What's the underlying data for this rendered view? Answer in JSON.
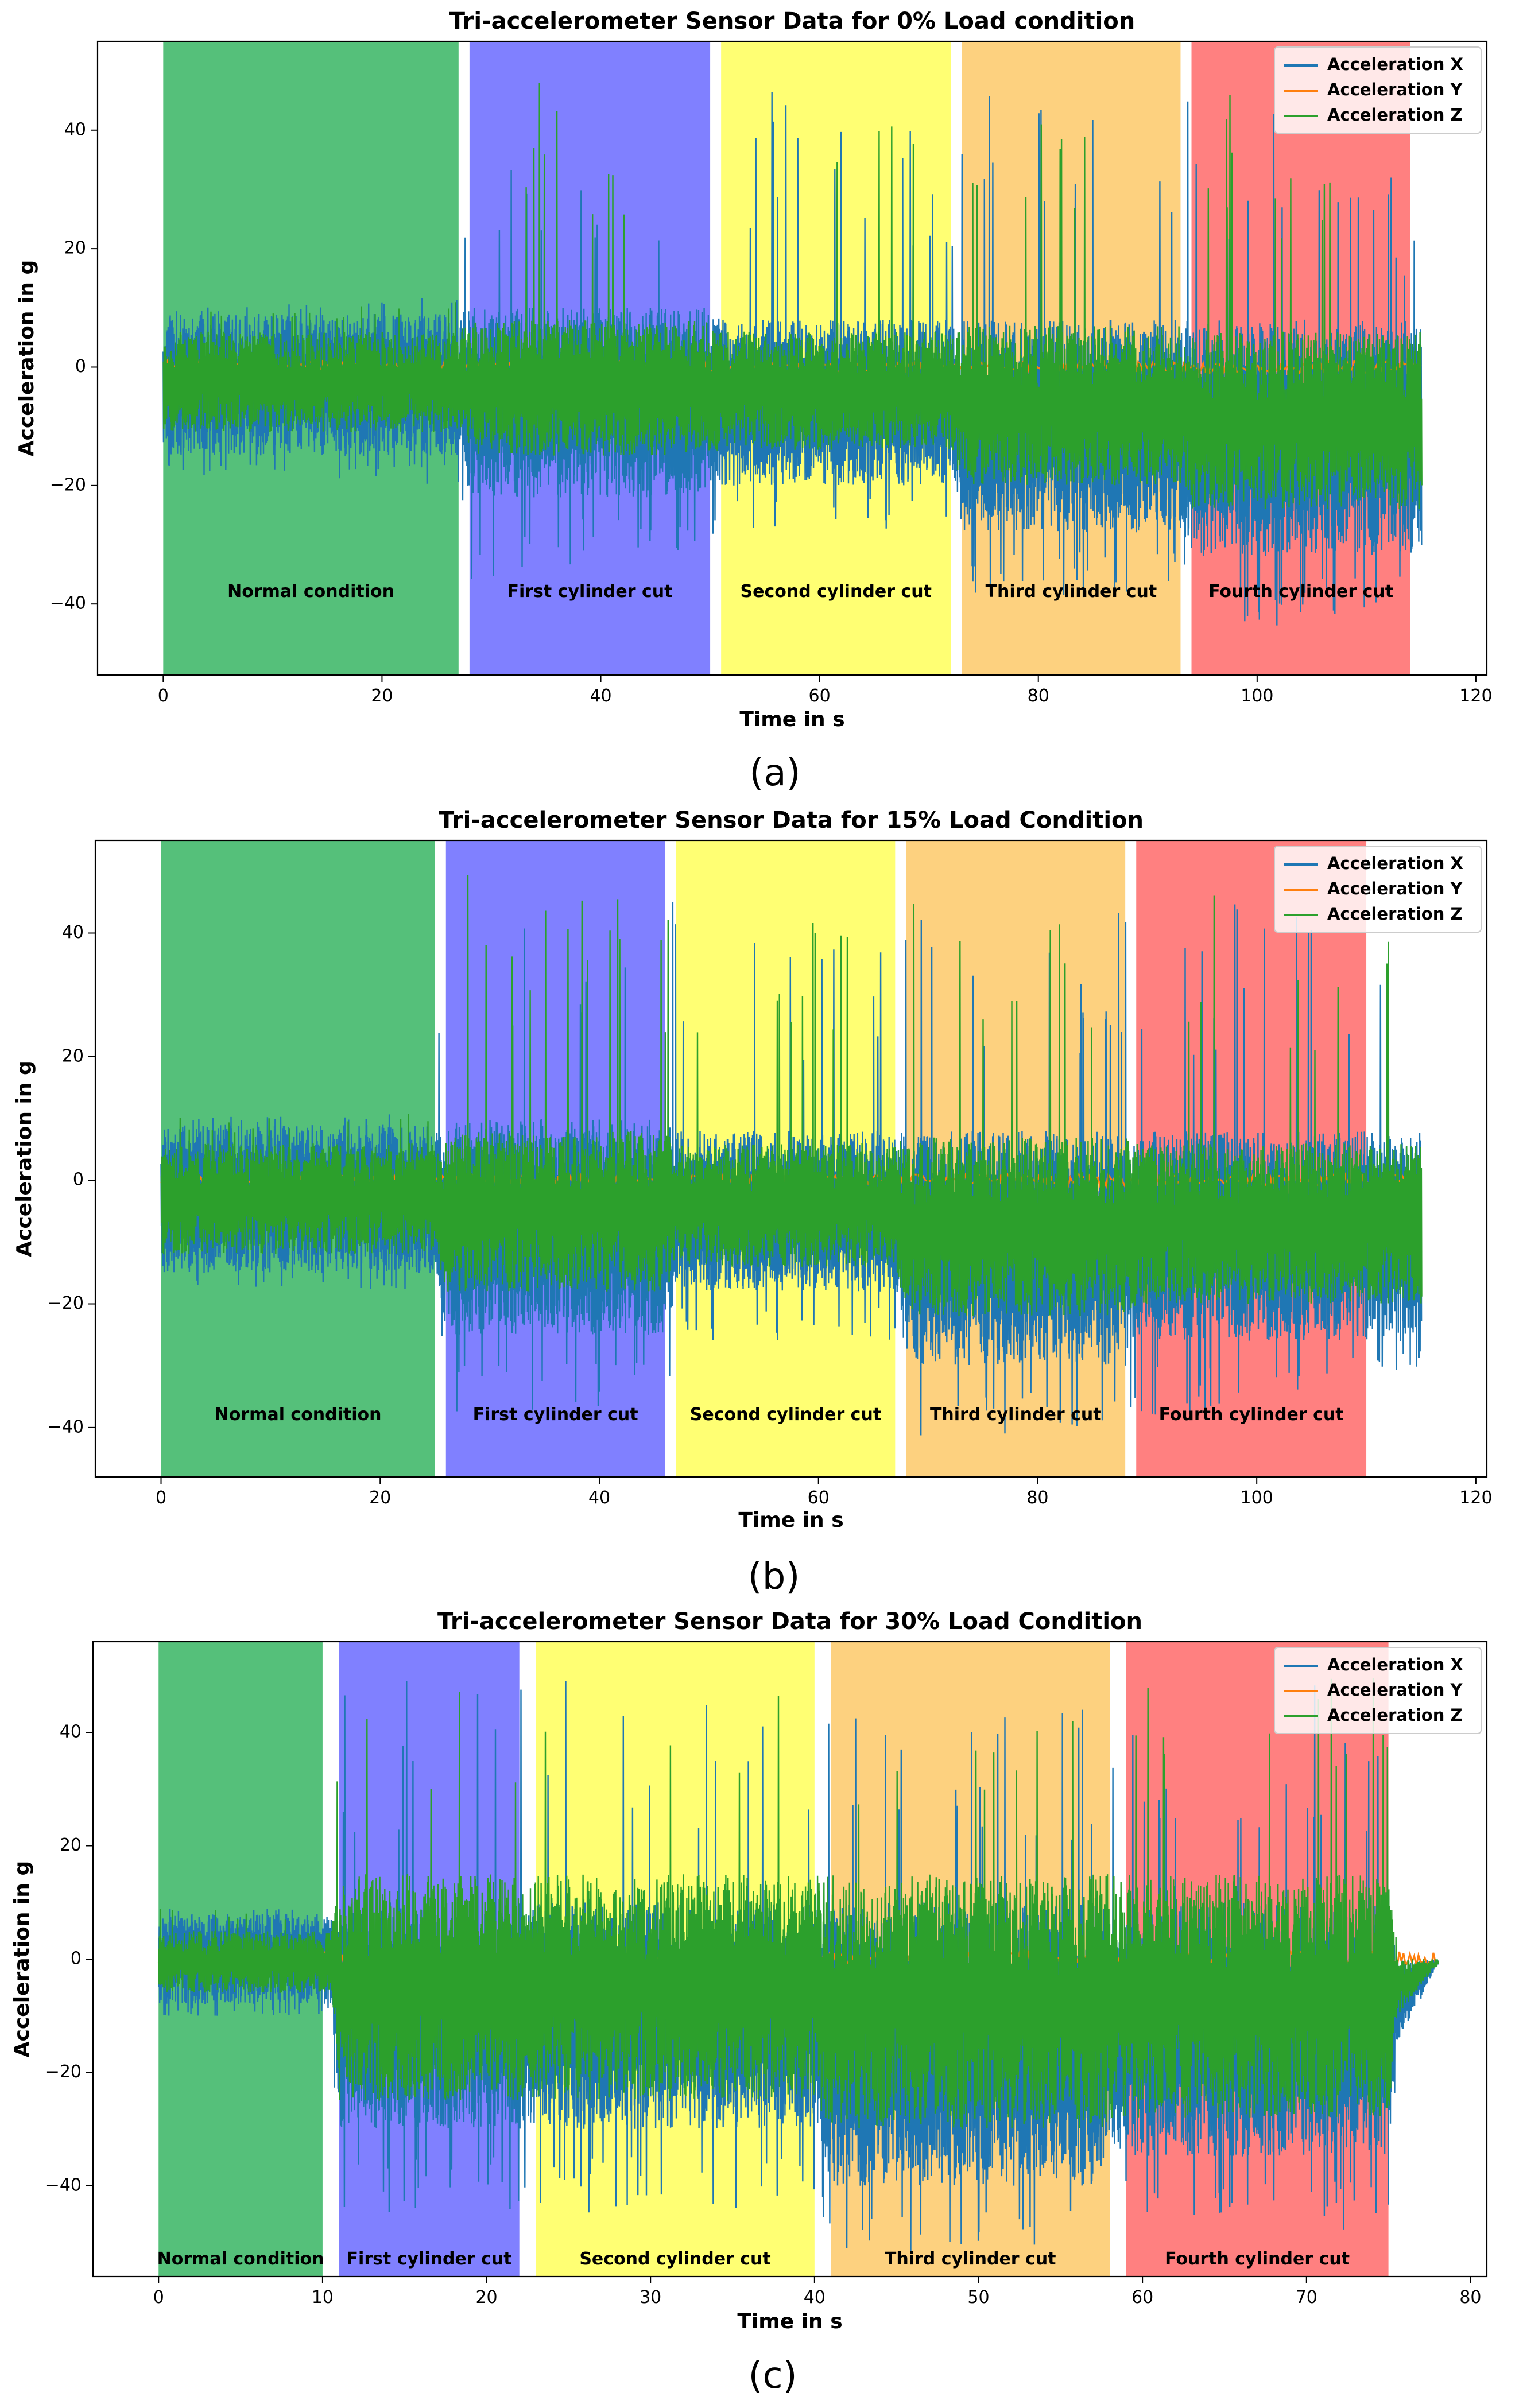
{
  "chart_data": [
    {
      "type": "line",
      "panel_label": "(a)",
      "title": "Tri-accelerometer Sensor Data for 0% Load condition",
      "xlabel": "Time in s",
      "ylabel": "Acceleration in g",
      "xlim": [
        -6,
        121
      ],
      "ylim": [
        -52,
        55
      ],
      "xticks": [
        0,
        20,
        40,
        60,
        80,
        100,
        120
      ],
      "yticks": [
        -40,
        -20,
        0,
        20,
        40
      ],
      "grid": false,
      "legend_position": "top-right",
      "series": [
        {
          "name": "Acceleration X",
          "color": "#1f77b4"
        },
        {
          "name": "Acceleration Y",
          "color": "#ff7f0e"
        },
        {
          "name": "Acceleration Z",
          "color": "#2ca02c"
        }
      ],
      "regions": [
        {
          "label": "Normal condition",
          "start": 0,
          "end": 27,
          "color": "#55c07a"
        },
        {
          "label": "First cylinder cut",
          "start": 28,
          "end": 50,
          "color": "#8080ff"
        },
        {
          "label": "Second cylinder cut",
          "start": 51,
          "end": 72,
          "color": "#ffff73"
        },
        {
          "label": "Third cylinder cut",
          "start": 73,
          "end": 93,
          "color": "#fdd17f"
        },
        {
          "label": "Fourth cylinder cut",
          "start": 94,
          "end": 114,
          "color": "#ff8080"
        }
      ],
      "region_label_y": -38,
      "envelope": [
        {
          "t": 0,
          "x_max": 9,
          "x_min": -15,
          "z_max": 6,
          "z_min": -11,
          "peak_max": 10,
          "peak_min": -18
        },
        {
          "t": 27,
          "x_max": 9,
          "x_min": -15,
          "z_max": 6,
          "z_min": -11,
          "peak_max": 12,
          "peak_min": -20
        },
        {
          "t": 28,
          "x_max": 10,
          "x_min": -22,
          "z_max": 8,
          "z_min": -15,
          "peak_max": 52,
          "peak_min": -38
        },
        {
          "t": 50,
          "x_max": 10,
          "x_min": -22,
          "z_max": 8,
          "z_min": -15,
          "peak_max": 45,
          "peak_min": -30
        },
        {
          "t": 51,
          "x_max": 8,
          "x_min": -20,
          "z_max": 6,
          "z_min": -14,
          "peak_max": 48,
          "peak_min": -28
        },
        {
          "t": 72,
          "x_max": 8,
          "x_min": -20,
          "z_max": 6,
          "z_min": -14,
          "peak_max": 45,
          "peak_min": -27
        },
        {
          "t": 73,
          "x_max": 8,
          "x_min": -28,
          "z_max": 7,
          "z_min": -20,
          "peak_max": 48,
          "peak_min": -40
        },
        {
          "t": 93,
          "x_max": 8,
          "x_min": -28,
          "z_max": 7,
          "z_min": -20,
          "peak_max": 42,
          "peak_min": -38
        },
        {
          "t": 94,
          "x_max": 8,
          "x_min": -32,
          "z_max": 6,
          "z_min": -24,
          "peak_max": 52,
          "peak_min": -46
        },
        {
          "t": 115,
          "x_max": 8,
          "x_min": -32,
          "z_max": 6,
          "z_min": -24,
          "peak_max": 30,
          "peak_min": -40
        }
      ],
      "y_trace": {
        "value": 0,
        "amp": 1,
        "end": 115
      }
    },
    {
      "type": "line",
      "panel_label": "(b)",
      "title": "Tri-accelerometer Sensor Data for 15% Load Condition",
      "xlabel": "Time in s",
      "ylabel": "Acceleration in g",
      "xlim": [
        -6,
        121
      ],
      "ylim": [
        -48,
        55
      ],
      "xticks": [
        0,
        20,
        40,
        60,
        80,
        100,
        120
      ],
      "yticks": [
        -40,
        -20,
        0,
        20,
        40
      ],
      "grid": false,
      "legend_position": "top-right",
      "series": [
        {
          "name": "Acceleration X",
          "color": "#1f77b4"
        },
        {
          "name": "Acceleration Y",
          "color": "#ff7f0e"
        },
        {
          "name": "Acceleration Z",
          "color": "#2ca02c"
        }
      ],
      "regions": [
        {
          "label": "Normal condition",
          "start": 0,
          "end": 25,
          "color": "#55c07a"
        },
        {
          "label": "First cylinder cut",
          "start": 26,
          "end": 46,
          "color": "#8080ff"
        },
        {
          "label": "Second cylinder cut",
          "start": 47,
          "end": 67,
          "color": "#ffff73"
        },
        {
          "label": "Third cylinder cut",
          "start": 68,
          "end": 88,
          "color": "#fdd17f"
        },
        {
          "label": "Fourth cylinder cut",
          "start": 89,
          "end": 110,
          "color": "#ff8080"
        }
      ],
      "region_label_y": -38,
      "envelope": [
        {
          "t": 0,
          "x_max": 9,
          "x_min": -15,
          "z_max": 6,
          "z_min": -12,
          "peak_max": 10,
          "peak_min": -17
        },
        {
          "t": 25,
          "x_max": 9,
          "x_min": -15,
          "z_max": 6,
          "z_min": -12,
          "peak_max": 11,
          "peak_min": -18
        },
        {
          "t": 26,
          "x_max": 10,
          "x_min": -25,
          "z_max": 8,
          "z_min": -18,
          "peak_max": 50,
          "peak_min": -40
        },
        {
          "t": 46,
          "x_max": 10,
          "x_min": -25,
          "z_max": 8,
          "z_min": -18,
          "peak_max": 45,
          "peak_min": -36
        },
        {
          "t": 47,
          "x_max": 8,
          "x_min": -18,
          "z_max": 6,
          "z_min": -14,
          "peak_max": 48,
          "peak_min": -26
        },
        {
          "t": 67,
          "x_max": 8,
          "x_min": -18,
          "z_max": 6,
          "z_min": -14,
          "peak_max": 40,
          "peak_min": -26
        },
        {
          "t": 68,
          "x_max": 8,
          "x_min": -30,
          "z_max": 7,
          "z_min": -22,
          "peak_max": 46,
          "peak_min": -42
        },
        {
          "t": 88,
          "x_max": 8,
          "x_min": -30,
          "z_max": 7,
          "z_min": -22,
          "peak_max": 44,
          "peak_min": -40
        },
        {
          "t": 89,
          "x_max": 8,
          "x_min": -26,
          "z_max": 6,
          "z_min": -20,
          "peak_max": 50,
          "peak_min": -40
        },
        {
          "t": 115,
          "x_max": 8,
          "x_min": -26,
          "z_max": 6,
          "z_min": -20,
          "peak_max": 38,
          "peak_min": -30
        }
      ],
      "y_trace": {
        "value": 0,
        "amp": 1,
        "end": 115
      }
    },
    {
      "type": "line",
      "panel_label": "(c)",
      "title": "Tri-accelerometer Sensor Data for 30% Load Condition",
      "xlabel": "Time in s",
      "ylabel": "Acceleration in g",
      "xlim": [
        -4,
        81
      ],
      "ylim": [
        -56,
        56
      ],
      "xticks": [
        0,
        10,
        20,
        30,
        40,
        50,
        60,
        70,
        80
      ],
      "yticks": [
        -40,
        -20,
        0,
        20,
        40
      ],
      "grid": false,
      "legend_position": "top-right",
      "series": [
        {
          "name": "Acceleration X",
          "color": "#1f77b4"
        },
        {
          "name": "Acceleration Y",
          "color": "#ff7f0e"
        },
        {
          "name": "Acceleration Z",
          "color": "#2ca02c"
        }
      ],
      "regions": [
        {
          "label": "Normal condition",
          "start": 0,
          "end": 10,
          "color": "#55c07a"
        },
        {
          "label": "First cylinder cut",
          "start": 11,
          "end": 22,
          "color": "#8080ff"
        },
        {
          "label": "Second cylinder cut",
          "start": 23,
          "end": 40,
          "color": "#ffff73"
        },
        {
          "label": "Third cylinder cut",
          "start": 41,
          "end": 58,
          "color": "#fdd17f"
        },
        {
          "label": "Fourth cylinder cut",
          "start": 59,
          "end": 75,
          "color": "#ff8080"
        }
      ],
      "region_label_y": -53,
      "envelope": [
        {
          "t": 0,
          "x_max": 8,
          "x_min": -8,
          "z_max": 5,
          "z_min": -6,
          "peak_max": 9,
          "peak_min": -10
        },
        {
          "t": 10.5,
          "x_max": 8,
          "x_min": -8,
          "z_max": 5,
          "z_min": -6,
          "peak_max": 9,
          "peak_min": -10
        },
        {
          "t": 11,
          "x_max": 10,
          "x_min": -30,
          "z_max": 15,
          "z_min": -25,
          "peak_max": 50,
          "peak_min": -45
        },
        {
          "t": 22,
          "x_max": 10,
          "x_min": -30,
          "z_max": 15,
          "z_min": -25,
          "peak_max": 48,
          "peak_min": -45
        },
        {
          "t": 23,
          "x_max": 10,
          "x_min": -30,
          "z_max": 15,
          "z_min": -25,
          "peak_max": 50,
          "peak_min": -45
        },
        {
          "t": 40,
          "x_max": 10,
          "x_min": -30,
          "z_max": 15,
          "z_min": -25,
          "peak_max": 50,
          "peak_min": -45
        },
        {
          "t": 41,
          "x_max": 10,
          "x_min": -40,
          "z_max": 15,
          "z_min": -30,
          "peak_max": 45,
          "peak_min": -52
        },
        {
          "t": 58,
          "x_max": 10,
          "x_min": -40,
          "z_max": 15,
          "z_min": -30,
          "peak_max": 45,
          "peak_min": -52
        },
        {
          "t": 59,
          "x_max": 10,
          "x_min": -35,
          "z_max": 15,
          "z_min": -28,
          "peak_max": 50,
          "peak_min": -48
        },
        {
          "t": 75,
          "x_max": 10,
          "x_min": -35,
          "z_max": 15,
          "z_min": -28,
          "peak_max": 50,
          "peak_min": -48
        },
        {
          "t": 75.5,
          "x_max": 0,
          "x_min": -15,
          "z_max": 0,
          "z_min": -10,
          "peak_max": 0,
          "peak_min": -16
        },
        {
          "t": 78,
          "x_max": 0,
          "x_min": -1,
          "z_max": 0,
          "z_min": -1,
          "peak_max": 0,
          "peak_min": -1
        }
      ],
      "y_trace": {
        "value": 0,
        "amp": 1.5,
        "end": 78
      }
    }
  ]
}
